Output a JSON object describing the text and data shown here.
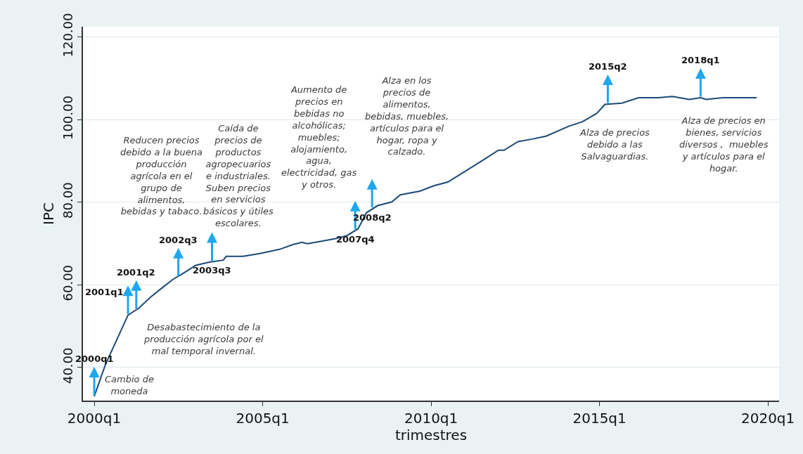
{
  "chart_data": {
    "type": "line",
    "xlabel": "trimestres",
    "ylabel": "IPC",
    "x": [
      "2000-01",
      "2000-05",
      "2000-09",
      "2001-01",
      "2001-05",
      "2001-09",
      "2002-01",
      "2002-05",
      "2002-08",
      "2002-11",
      "2003-01",
      "2003-06",
      "2003-11",
      "2003-12",
      "2004-06",
      "2004-12",
      "2005-07",
      "2005-12",
      "2006-03",
      "2006-05",
      "2006-11",
      "2007-03",
      "2007-07",
      "2007-11",
      "2008-02",
      "2008-06",
      "2008-11",
      "2009-02",
      "2009-09",
      "2010-02",
      "2010-07",
      "2010-12",
      "2011-08",
      "2012-01",
      "2012-03",
      "2012-08",
      "2013-01",
      "2013-06",
      "2014-02",
      "2014-07",
      "2014-12",
      "2015-03",
      "2015-09",
      "2016-03",
      "2016-10",
      "2017-03",
      "2017-09",
      "2018-01",
      "2018-03",
      "2018-09",
      "2019-09"
    ],
    "series": [
      {
        "color": "#1b4a78",
        "values": [
          33,
          40.7,
          46.7,
          52.7,
          54.4,
          57,
          59.2,
          61.3,
          62.5,
          63.8,
          64.7,
          65.5,
          66,
          66.9,
          66.9,
          67.6,
          68.6,
          69.8,
          70.3,
          70,
          70.7,
          71.2,
          71.9,
          73.6,
          77.5,
          79.2,
          80.1,
          81.8,
          82.7,
          84,
          84.9,
          87,
          90.4,
          92.6,
          92.6,
          94.7,
          95.3,
          96,
          98.4,
          99.5,
          101.5,
          103.7,
          104,
          105.3,
          105.3,
          105.6,
          104.9,
          105.3,
          104.9,
          105.3,
          105.3
        ]
      }
    ],
    "xlim": [
      "1999-09",
      "2020-05"
    ],
    "xticks": [
      {
        "value": "2000-01",
        "label": "2000q1"
      },
      {
        "value": "2005-01",
        "label": "2005q1"
      },
      {
        "value": "2010-01",
        "label": "2010q1"
      },
      {
        "value": "2015-01",
        "label": "2015q1"
      },
      {
        "value": "2020-01",
        "label": "2020q1"
      }
    ],
    "ylim": [
      32,
      122.5
    ],
    "yticks": [
      {
        "value": 40,
        "label": "40.00"
      },
      {
        "value": 60,
        "label": "60.00"
      },
      {
        "value": 80,
        "label": "80.00"
      },
      {
        "value": 100,
        "label": "100.00"
      },
      {
        "value": 120,
        "label": "120.00"
      }
    ],
    "grid": "y",
    "line_style": "solid",
    "marker": "none",
    "annotations": [
      {
        "text": "2000q1",
        "x": "2000-01",
        "y": 33
      },
      {
        "text": "2001q1",
        "x": "2001-01",
        "y": 52.7
      },
      {
        "text": "2001q2",
        "x": "2001-04",
        "y": 54
      },
      {
        "text": "2002q3",
        "x": "2002-07",
        "y": 61.8
      },
      {
        "text": "2003q3",
        "x": "2003-07",
        "y": 65.6
      },
      {
        "text": "2007q4",
        "x": "2007-10",
        "y": 73.2
      },
      {
        "text": "2008q2",
        "x": "2008-04",
        "y": 78.5
      },
      {
        "text": "2015q2",
        "x": "2015-04",
        "y": 103.8
      },
      {
        "text": "2018q1",
        "x": "2018-01",
        "y": 105.3
      },
      "Cambio de\nmoneda",
      "Desabastecimiento de la\nproducción agrícola por el\nmal temporal invernal.",
      "Reducen precios\ndebido a la buena\nproducción\nagrícola en el\ngrupo de\nalimentos,\nbebidas y tabaco.",
      "Caída de\nprecios de\nproductos\nagropecuarios\ne industriales.\nSuben precios\nen servicios\nbásicos y útiles\nescolares.",
      "Aumento de\nprecios en\nbebidas no\nalcohólicas;\nmuebles;\nalojamiento,\nagua,\nelectricidad, gas\ny otros.",
      "Alza en los\nprecios de\nalimentos,\nbebidas, muebles,\nartículos para el\nhogar, ropa y\ncalzado.",
      "Alza de precios\ndebido a las\nSalvaguardias.",
      "Alza de precios en\nbienes, servicios\ndiversos ,  muebles\ny artículos para el\nhogar."
    ]
  }
}
